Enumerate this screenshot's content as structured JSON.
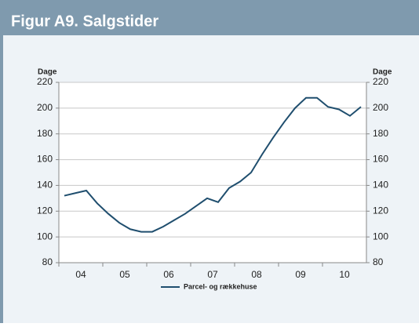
{
  "header": {
    "title": "Figur A9. Salgstider"
  },
  "chart_data": {
    "type": "line",
    "y_label": "Dage",
    "y2_label": "Dage",
    "categories": [
      null,
      "04",
      null,
      null,
      null,
      "05",
      null,
      null,
      null,
      "06",
      null,
      null,
      null,
      "07",
      null,
      null,
      null,
      "08",
      null,
      null,
      null,
      "09",
      null,
      null,
      null,
      "10",
      null,
      null
    ],
    "series": [
      {
        "name": "Parcel- og rækkehuse",
        "color": "#1f4e6e",
        "values": [
          132,
          134,
          136,
          126,
          118,
          111,
          106,
          104,
          104,
          108,
          113,
          118,
          124,
          130,
          127,
          138,
          143,
          150,
          164,
          177,
          189,
          200,
          208,
          208,
          201,
          199,
          194,
          201
        ]
      }
    ],
    "ylim": [
      80,
      220
    ],
    "yticks": [
      80,
      100,
      120,
      140,
      160,
      180,
      200,
      220
    ],
    "y2lim": [
      80,
      220
    ],
    "y2ticks": [
      80,
      100,
      120,
      140,
      160,
      180,
      200,
      220
    ],
    "grid": true
  }
}
